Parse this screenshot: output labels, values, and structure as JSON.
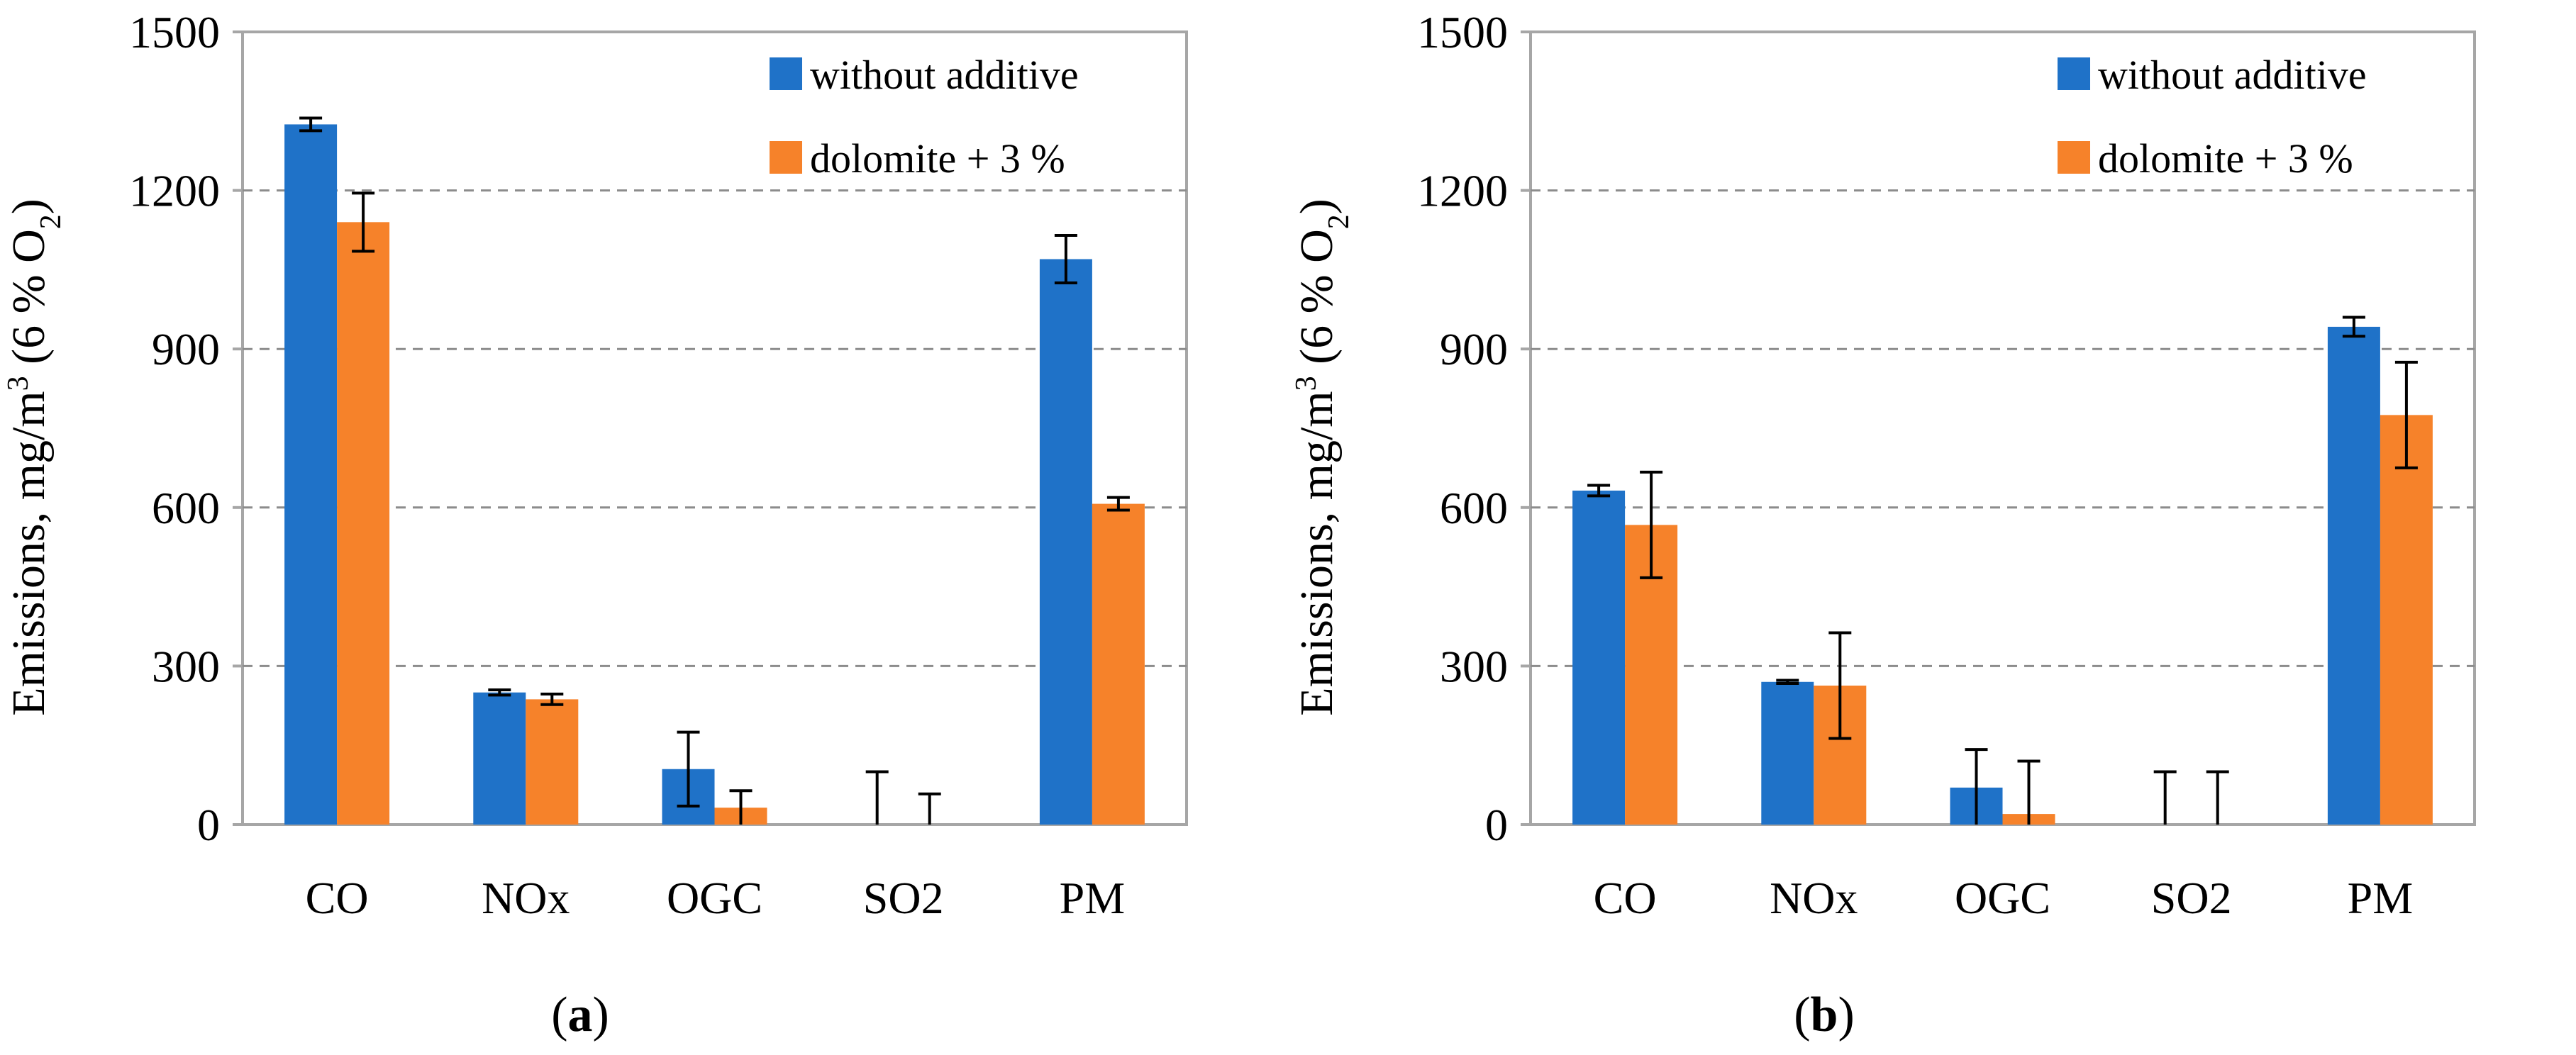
{
  "chart_data": [
    {
      "type": "bar",
      "panel": "a",
      "categories": [
        "CO",
        "NOx",
        "OGC",
        "SO2",
        "PM"
      ],
      "series": [
        {
          "name": "without additive",
          "color": "#1f72c8",
          "values": [
            1325,
            250,
            105,
            0,
            1070
          ],
          "errors": [
            12,
            5,
            70,
            100,
            45
          ]
        },
        {
          "name": "dolomite + 3 %",
          "color": "#f6822a",
          "values": [
            1140,
            237,
            32,
            0,
            607
          ],
          "errors": [
            55,
            10,
            32,
            58,
            12
          ]
        }
      ],
      "ylabel_main": "Emissions, mg/m",
      "ylabel_sup": "3",
      "ylabel_mid": " (6 % O",
      "ylabel_sub": "2",
      "ylabel_end": ")",
      "ylim": [
        0,
        1500
      ],
      "yticks": [
        "0",
        "300",
        "600",
        "900",
        "1200",
        "1500"
      ],
      "grid": true,
      "legend": "top-right",
      "label_open": "(",
      "label_letter": "a",
      "label_close": ")"
    },
    {
      "type": "bar",
      "panel": "b",
      "categories": [
        "CO",
        "NOx",
        "OGC",
        "SO2",
        "PM"
      ],
      "series": [
        {
          "name": "without additive",
          "color": "#1f72c8",
          "values": [
            632,
            270,
            70,
            0,
            942
          ],
          "errors": [
            10,
            3,
            72,
            100,
            18
          ]
        },
        {
          "name": "dolomite + 3 %",
          "color": "#f6822a",
          "values": [
            567,
            263,
            20,
            0,
            775
          ],
          "errors": [
            100,
            100,
            100,
            100,
            100
          ]
        }
      ],
      "ylabel_main": "Emissions, mg/m",
      "ylabel_sup": "3",
      "ylabel_mid": " (6 % O",
      "ylabel_sub": "2",
      "ylabel_end": ")",
      "ylim": [
        0,
        1500
      ],
      "yticks": [
        "0",
        "300",
        "600",
        "900",
        "1200",
        "1500"
      ],
      "grid": true,
      "legend": "top-right",
      "label_open": "(",
      "label_letter": "b",
      "label_close": ")"
    }
  ]
}
